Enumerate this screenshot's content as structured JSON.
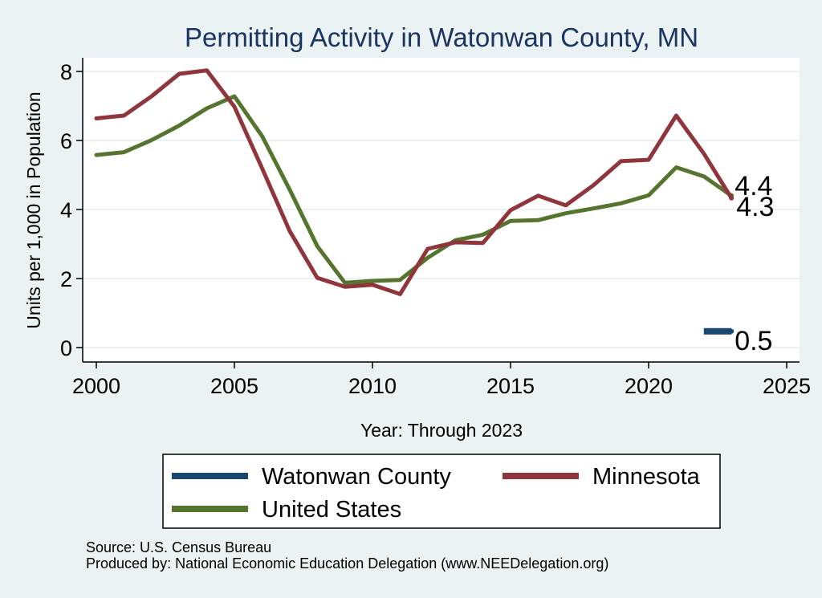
{
  "chart_data": {
    "type": "line",
    "title": "Permitting Activity in Watonwan County, MN",
    "xlabel": "Year: Through 2023",
    "ylabel": "Units per 1,000 in Population",
    "xlim": [
      2000,
      2025
    ],
    "ylim": [
      0,
      8
    ],
    "x_ticks": [
      2000,
      2005,
      2010,
      2015,
      2020,
      2025
    ],
    "y_ticks": [
      0,
      2,
      4,
      6,
      8
    ],
    "x_tick_labels": [
      "2000",
      "2005",
      "2010",
      "2015",
      "2020",
      "2025"
    ],
    "y_tick_labels": [
      "0",
      "2",
      "4",
      "6",
      "8"
    ],
    "grid": true,
    "legend_position": "bottom",
    "series": [
      {
        "name": "Watonwan County",
        "color": "#1a476f",
        "x": [
          2022,
          2023
        ],
        "values": [
          0.47,
          0.47
        ],
        "end_label": "0.5"
      },
      {
        "name": "Minnesota",
        "color": "#90353b",
        "x": [
          2000,
          2001,
          2002,
          2003,
          2004,
          2005,
          2006,
          2007,
          2008,
          2009,
          2010,
          2011,
          2012,
          2013,
          2014,
          2015,
          2016,
          2017,
          2018,
          2019,
          2020,
          2021,
          2022,
          2023
        ],
        "values": [
          6.64,
          6.72,
          7.28,
          7.93,
          8.03,
          6.98,
          5.2,
          3.38,
          2.02,
          1.76,
          1.82,
          1.55,
          2.86,
          3.05,
          3.03,
          3.98,
          4.4,
          4.12,
          4.7,
          5.4,
          5.44,
          6.72,
          5.62,
          4.33
        ],
        "end_label": "4.3"
      },
      {
        "name": "United States",
        "color": "#55752f",
        "x": [
          2000,
          2001,
          2002,
          2003,
          2004,
          2005,
          2006,
          2007,
          2008,
          2009,
          2010,
          2011,
          2012,
          2013,
          2014,
          2015,
          2016,
          2017,
          2018,
          2019,
          2020,
          2021,
          2022,
          2023
        ],
        "values": [
          5.58,
          5.66,
          6.01,
          6.43,
          6.93,
          7.28,
          6.13,
          4.58,
          2.94,
          1.88,
          1.93,
          1.96,
          2.6,
          3.11,
          3.27,
          3.67,
          3.69,
          3.89,
          4.03,
          4.18,
          4.41,
          5.22,
          4.96,
          4.4
        ],
        "end_label": "4.4"
      }
    ],
    "legend": [
      "Watonwan County",
      "Minnesota",
      "United States"
    ]
  },
  "notes": {
    "source": "Source: U.S. Census Bureau",
    "produced_by": "Produced by: National Economic Education Delegation (www.NEEDelegation.org)"
  },
  "colors": {
    "background": "#eaf2f3",
    "plot_background": "#ffffff",
    "grid": "#eaf2f3",
    "title": "#1a3563"
  }
}
